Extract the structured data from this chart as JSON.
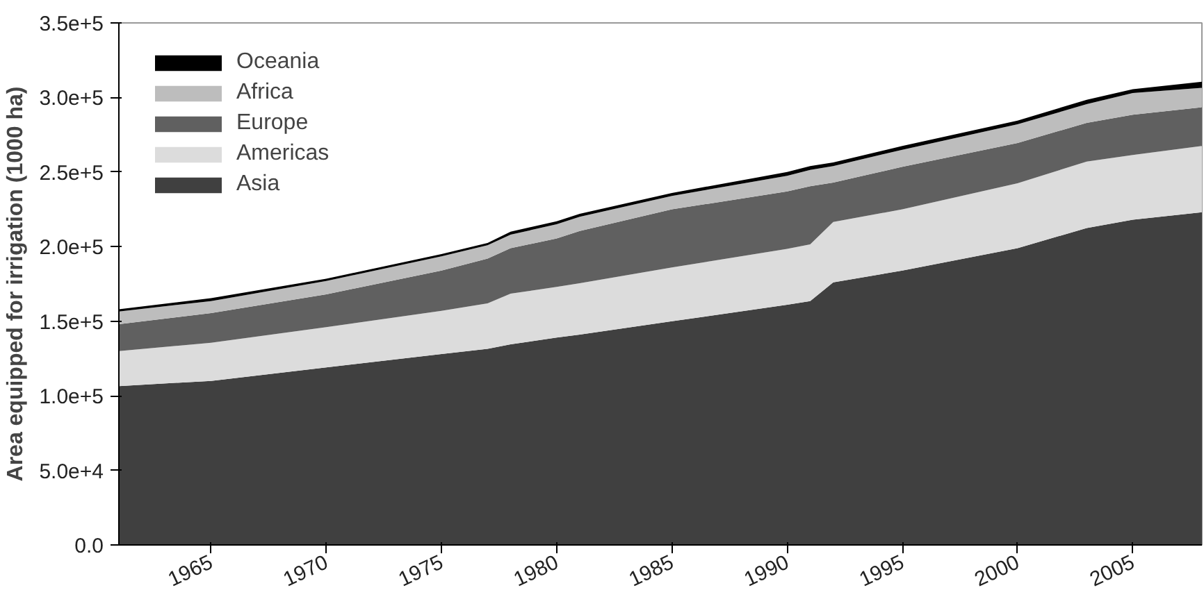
{
  "chart_data": {
    "type": "area",
    "stacked": true,
    "ylabel": "Area equipped for irrigation (1000 ha)",
    "x": [
      1961,
      1965,
      1970,
      1975,
      1977,
      1978,
      1980,
      1981,
      1985,
      1990,
      1991,
      1992,
      1995,
      2000,
      2003,
      2005,
      2008
    ],
    "series": [
      {
        "name": "Asia",
        "color": "#404040",
        "values": [
          106500,
          110000,
          119000,
          128000,
          131500,
          134500,
          139000,
          141000,
          150000,
          161000,
          163500,
          176000,
          184000,
          199000,
          212500,
          218000,
          223000
        ]
      },
      {
        "name": "Americas",
        "color": "#dcdcdc",
        "values": [
          23500,
          25500,
          27000,
          29000,
          30500,
          34000,
          34000,
          34500,
          36000,
          37500,
          38000,
          40500,
          41000,
          43500,
          44500,
          43500,
          44500
        ]
      },
      {
        "name": "Europe",
        "color": "#606060",
        "values": [
          18000,
          20000,
          22000,
          27000,
          30000,
          30500,
          32500,
          35000,
          39000,
          38500,
          39000,
          26500,
          28500,
          27000,
          26000,
          27000,
          26000
        ]
      },
      {
        "name": "Africa",
        "color": "#bdbdbd",
        "values": [
          8500,
          8000,
          9000,
          9500,
          9000,
          9000,
          9500,
          9500,
          9000,
          10500,
          11000,
          11000,
          11500,
          12500,
          12500,
          14500,
          13000
        ]
      },
      {
        "name": "Oceania",
        "color": "#000000",
        "values": [
          1500,
          2000,
          1500,
          1500,
          1500,
          2000,
          2000,
          2000,
          2000,
          2500,
          2500,
          2500,
          2500,
          2500,
          3000,
          2500,
          4000
        ]
      }
    ],
    "xlim": [
      1961,
      2008
    ],
    "xticks": [
      1965,
      1970,
      1975,
      1980,
      1985,
      1990,
      1995,
      2000,
      2005
    ],
    "ylim": [
      0,
      350000
    ],
    "yticks": [
      {
        "value": 0,
        "label": "0.0"
      },
      {
        "value": 50000,
        "label": "5.0e+4"
      },
      {
        "value": 100000,
        "label": "1.0e+5"
      },
      {
        "value": 150000,
        "label": "1.5e+5"
      },
      {
        "value": 200000,
        "label": "2.0e+5"
      },
      {
        "value": 250000,
        "label": "2.5e+5"
      },
      {
        "value": 300000,
        "label": "3.0e+5"
      },
      {
        "value": 350000,
        "label": "3.5e+5"
      }
    ],
    "grid": false,
    "legend": "top left"
  }
}
